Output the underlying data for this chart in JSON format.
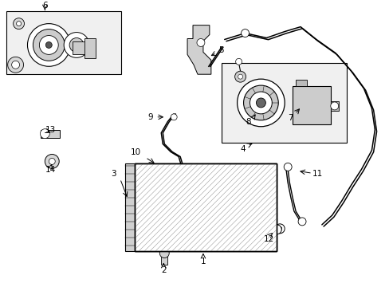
{
  "bg_color": "#ffffff",
  "line_color": "#000000",
  "fig_width": 4.89,
  "fig_height": 3.6
}
